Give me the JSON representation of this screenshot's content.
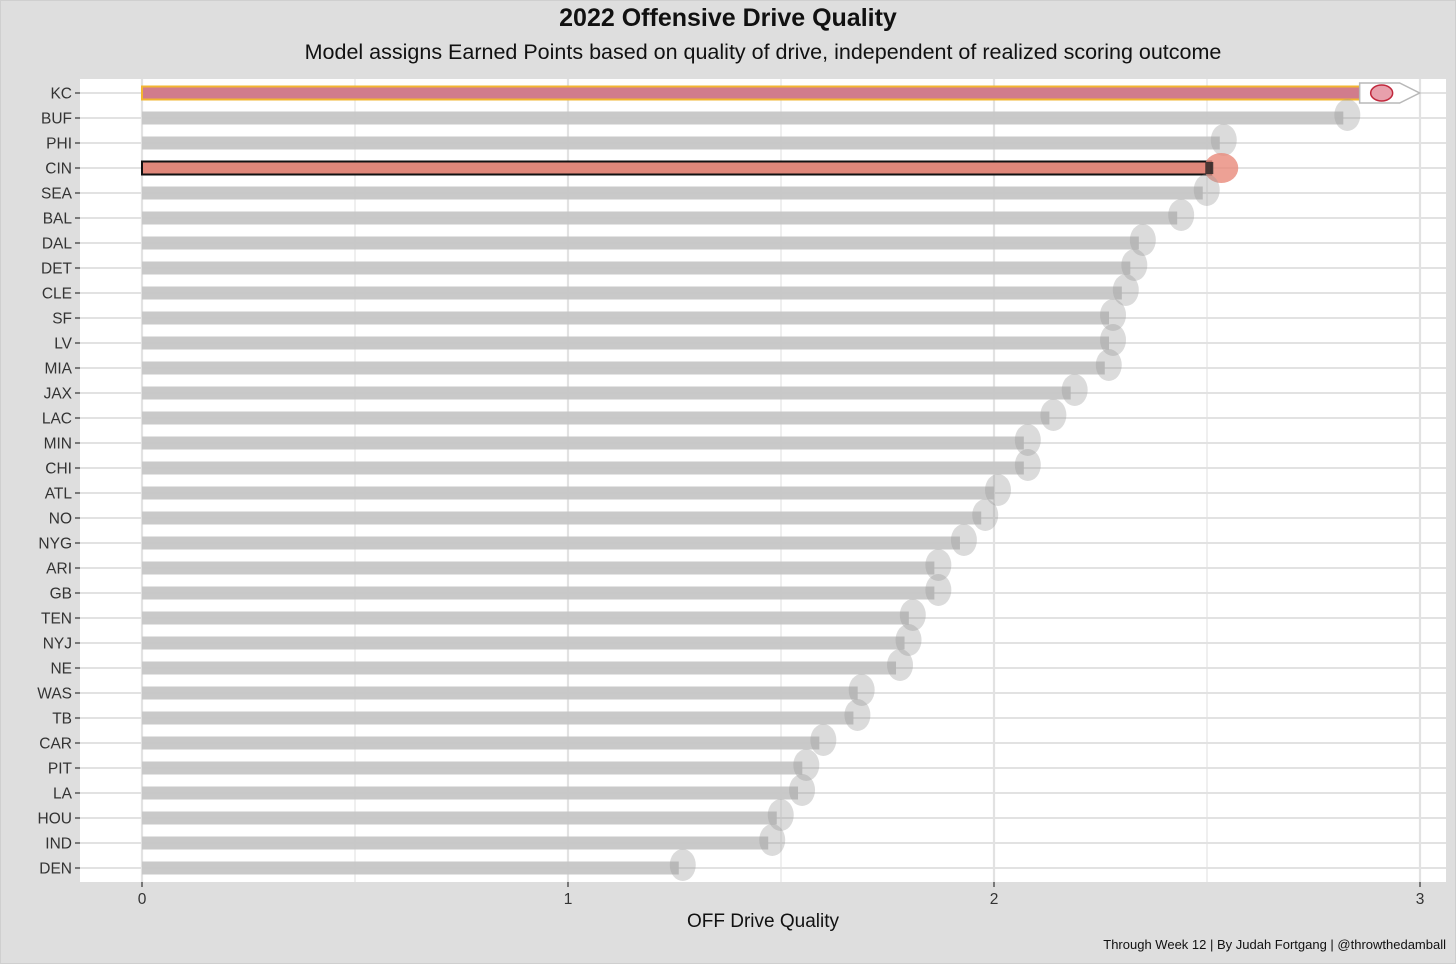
{
  "chart_data": {
    "type": "bar",
    "orientation": "horizontal",
    "title": "2022 Offensive Drive Quality",
    "subtitle": "Model assigns Earned Points based on quality of drive, independent of realized scoring outcome",
    "xlabel": "OFF Drive Quality",
    "ylabel": "",
    "caption": "Through Week 12 | By Judah Fortgang | @throwthedamball",
    "xlim": [
      -0.145,
      3.08
    ],
    "xticks": [
      0,
      1,
      2,
      3
    ],
    "grid": true,
    "categories": [
      "KC",
      "BUF",
      "PHI",
      "CIN",
      "SEA",
      "BAL",
      "DAL",
      "DET",
      "CLE",
      "SF",
      "LV",
      "MIA",
      "JAX",
      "LAC",
      "MIN",
      "CHI",
      "ATL",
      "NO",
      "NYG",
      "ARI",
      "GB",
      "TEN",
      "NYJ",
      "NE",
      "WAS",
      "TB",
      "CAR",
      "PIT",
      "LA",
      "HOU",
      "IND",
      "DEN"
    ],
    "values": [
      2.91,
      2.82,
      2.53,
      2.51,
      2.49,
      2.43,
      2.34,
      2.32,
      2.3,
      2.27,
      2.27,
      2.26,
      2.18,
      2.13,
      2.07,
      2.07,
      2.0,
      1.97,
      1.92,
      1.86,
      1.86,
      1.8,
      1.79,
      1.77,
      1.68,
      1.67,
      1.59,
      1.55,
      1.54,
      1.49,
      1.47,
      1.26
    ],
    "highlight": {
      "KC": {
        "fill": "#d17c8c",
        "stroke": "#f2b632"
      },
      "CIN": {
        "fill": "#e0877a",
        "stroke": "#111111"
      }
    },
    "colors": {
      "default_bar": "#c6c6c6",
      "panel_background": "#ffffff",
      "gridline": "#e2e2e2",
      "outer_background": "#dedede"
    },
    "bar_end_icons": "team-logo"
  }
}
